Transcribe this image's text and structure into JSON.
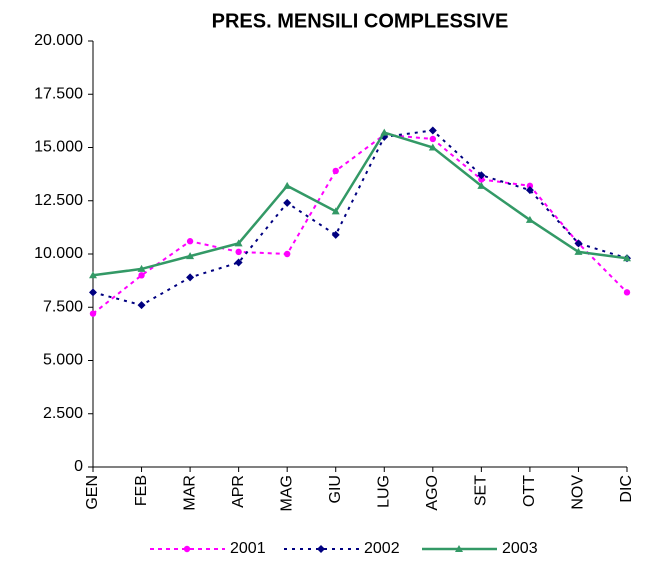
{
  "chart_data": {
    "type": "line",
    "title": "PRES. MENSILI COMPLESSIVE",
    "categories": [
      "GEN",
      "FEB",
      "MAR",
      "APR",
      "MAG",
      "GIU",
      "LUG",
      "AGO",
      "SET",
      "OTT",
      "NOV",
      "DIC"
    ],
    "series": [
      {
        "name": "2001",
        "color": "#ff00ff",
        "values": [
          7200,
          9000,
          10600,
          10100,
          10000,
          13900,
          15600,
          15400,
          13500,
          13200,
          10500,
          8200
        ]
      },
      {
        "name": "2002",
        "color": "#000080",
        "values": [
          8200,
          7600,
          8900,
          9600,
          12400,
          10900,
          15500,
          15800,
          13700,
          13000,
          10500,
          9800
        ]
      },
      {
        "name": "2003",
        "color": "#339966",
        "values": [
          9000,
          9300,
          9900,
          10500,
          13200,
          12000,
          15700,
          15000,
          13200,
          11600,
          10100,
          9800
        ]
      }
    ],
    "ylim": [
      0,
      20000
    ],
    "yticks": [
      0,
      {
        "value": 2500,
        "label": "2.500"
      },
      {
        "value": 5000,
        "label": "5.000"
      },
      {
        "value": 7500,
        "label": "7.500"
      },
      {
        "value": 10000,
        "label": "10.000"
      },
      {
        "value": 12500,
        "label": "12.500"
      },
      {
        "value": 15000,
        "label": "15.000"
      },
      {
        "value": 17500,
        "label": "17.500"
      },
      {
        "value": 20000,
        "label": "20.000"
      }
    ],
    "grid": false,
    "legend": "bottom"
  }
}
